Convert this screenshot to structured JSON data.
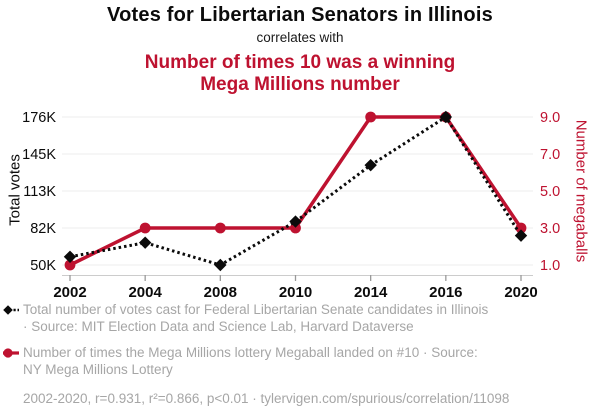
{
  "header": {
    "title": "Votes for Libertarian Senators in Illinois",
    "connector": "correlates with",
    "subtitle_line1": "Number of times 10 was a winning",
    "subtitle_line2": "Mega Millions number"
  },
  "colors": {
    "accent_red": "#be1230",
    "text_black": "#0b0b0b",
    "legend_gray": "#a6a6a6",
    "gridline": "#ededed",
    "axis_line": "#cccccc",
    "tick_mark": "#999999"
  },
  "chart_data": {
    "type": "line",
    "x_labels": [
      "2002",
      "2004",
      "2008",
      "2010",
      "2014",
      "2016",
      "2020"
    ],
    "series": [
      {
        "name": "Total number of votes cast for Federal Libertarian Senate candidates in Illinois",
        "short_name": "total-votes",
        "axis": "left",
        "color": "#0b0b0b",
        "line_style": "dotted",
        "marker": "diamond",
        "values": [
          57000,
          69000,
          50000,
          87000,
          135000,
          176000,
          75000
        ]
      },
      {
        "name": "Number of times the Mega Millions lottery Megaball landed on #10",
        "short_name": "megaballs",
        "axis": "right",
        "color": "#be1230",
        "line_style": "solid",
        "marker": "circle",
        "values": [
          1,
          3,
          3,
          3,
          9,
          9,
          3
        ]
      }
    ],
    "left_axis": {
      "label": "Total votes",
      "tick_labels": [
        "50K",
        "82K",
        "113K",
        "145K",
        "176K"
      ],
      "range": [
        50000,
        176000
      ]
    },
    "right_axis": {
      "label": "Number of megaballs",
      "tick_labels": [
        "1.0",
        "3.0",
        "5.0",
        "7.0",
        "9.0"
      ],
      "range": [
        1,
        9
      ]
    },
    "grid": "horizontal",
    "legend_position": "bottom"
  },
  "legend": {
    "items": [
      {
        "lines": [
          "Total number of votes cast for Federal Libertarian Senate candidates in Illinois",
          "· Source: MIT Election Data and Science Lab, Harvard Dataverse"
        ]
      },
      {
        "lines": [
          "Number of times the Mega Millions lottery Megaball landed on #10 · Source:",
          "NY Mega Millions Lottery"
        ]
      }
    ]
  },
  "footer": {
    "text": "2002-2020, r=0.931, r²=0.866, p<0.01 · tylervigen.com/spurious/correlation/11098"
  }
}
